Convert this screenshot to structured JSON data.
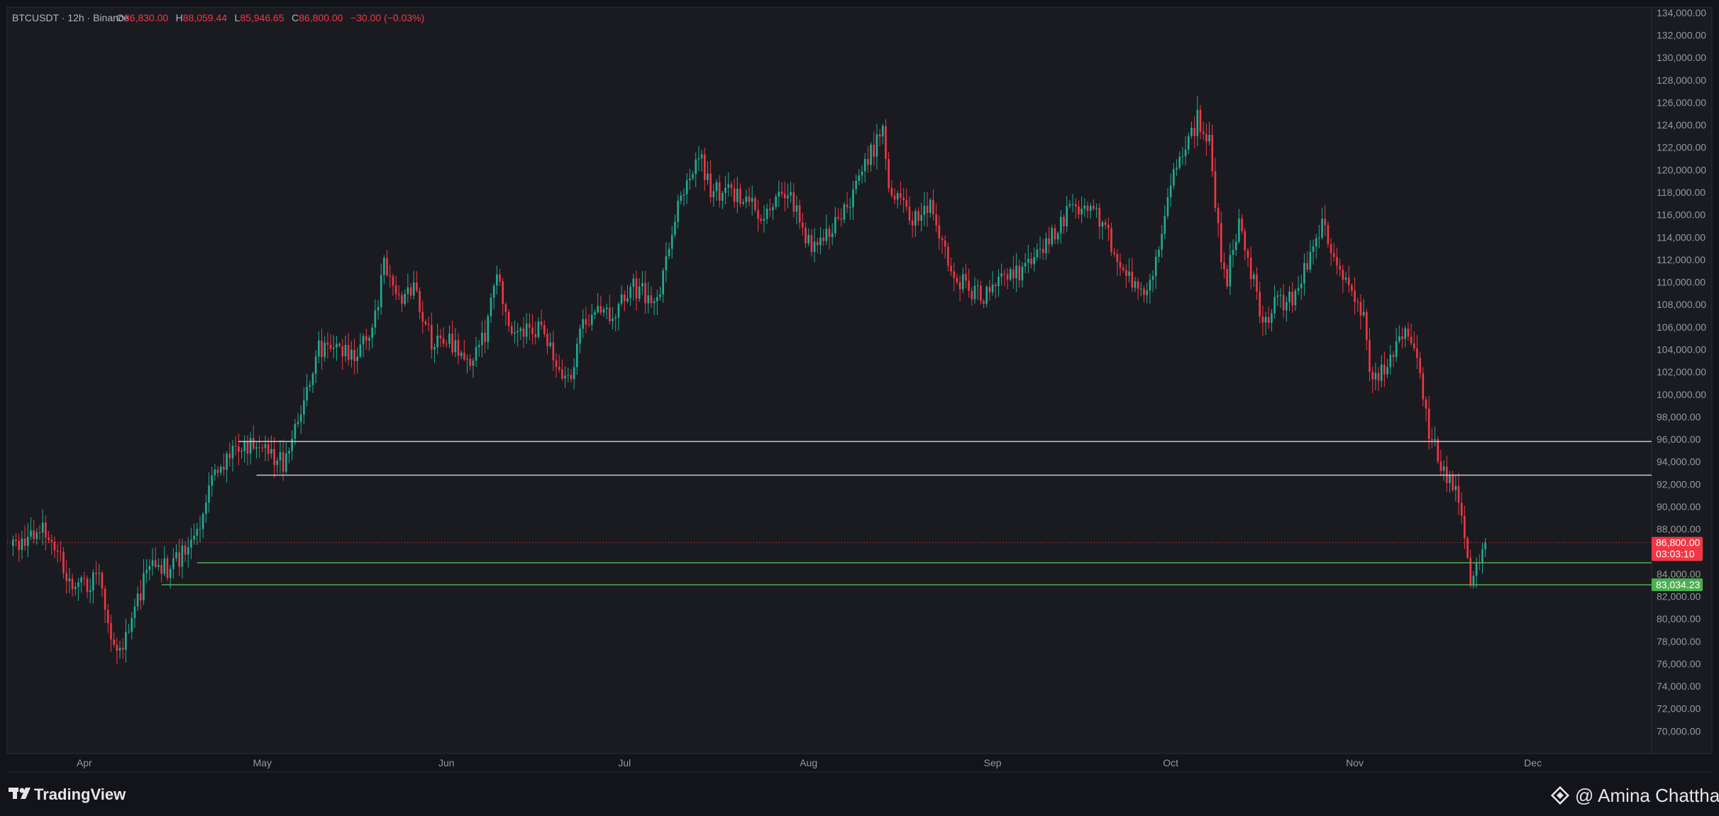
{
  "header": {
    "symbol": "BTCUSDT · 12h · Binance",
    "open_key": "O",
    "open": "86,830.00",
    "high_key": "H",
    "high": "88,059.44",
    "low_key": "L",
    "low": "85,946.65",
    "close_key": "C",
    "close": "86,800.00",
    "change": "−30.00 (−0.03%)"
  },
  "footer": {
    "brand": "TradingView",
    "watermark": "@ Amina Chattha"
  },
  "colors": {
    "background": "#131419",
    "chart_bg": "#1a1b20",
    "up": "#22ab94",
    "down": "#f23645",
    "white_line": "#c8cacf",
    "green_line": "#4caf50",
    "price_line": "#f23645"
  },
  "chart_data": {
    "type": "candlestick",
    "title": "",
    "xlabel": "",
    "ylabel": "",
    "ylim": [
      68000,
      134500
    ],
    "y_ticks": [
      "134,000.00",
      "132,000.00",
      "130,000.00",
      "128,000.00",
      "126,000.00",
      "124,000.00",
      "122,000.00",
      "120,000.00",
      "118,000.00",
      "116,000.00",
      "114,000.00",
      "112,000.00",
      "110,000.00",
      "108,000.00",
      "106,000.00",
      "104,000.00",
      "102,000.00",
      "100,000.00",
      "98,000.00",
      "96,000.00",
      "94,000.00",
      "92,000.00",
      "90,000.00",
      "88,000.00",
      "86,000.00",
      "84,000.00",
      "82,000.00",
      "80,000.00",
      "78,000.00",
      "76,000.00",
      "74,000.00",
      "72,000.00",
      "70,000.00"
    ],
    "x_ticks": [
      {
        "label": "Apr",
        "date": "2025-04-01"
      },
      {
        "label": "May",
        "date": "2025-05-01"
      },
      {
        "label": "Jun",
        "date": "2025-06-01"
      },
      {
        "label": "Jul",
        "date": "2025-07-01"
      },
      {
        "label": "Aug",
        "date": "2025-08-01"
      },
      {
        "label": "Sep",
        "date": "2025-09-01"
      },
      {
        "label": "Oct",
        "date": "2025-10-01"
      },
      {
        "label": "Nov",
        "date": "2025-11-01"
      },
      {
        "label": "Dec",
        "date": "2025-12-01"
      }
    ],
    "price_path": [
      [
        "2025-03-20",
        86500
      ],
      [
        "2025-03-26",
        88000
      ],
      [
        "2025-03-31",
        82500
      ],
      [
        "2025-04-04",
        84000
      ],
      [
        "2025-04-07",
        76500
      ],
      [
        "2025-04-09",
        78500
      ],
      [
        "2025-04-12",
        84500
      ],
      [
        "2025-04-16",
        84500
      ],
      [
        "2025-04-21",
        87500
      ],
      [
        "2025-04-23",
        93500
      ],
      [
        "2025-04-28",
        95000
      ],
      [
        "2025-05-01",
        95500
      ],
      [
        "2025-05-05",
        94000
      ],
      [
        "2025-05-08",
        99000
      ],
      [
        "2025-05-11",
        104000
      ],
      [
        "2025-05-14",
        104500
      ],
      [
        "2025-05-17",
        103500
      ],
      [
        "2025-05-20",
        105500
      ],
      [
        "2025-05-22",
        111500
      ],
      [
        "2025-05-25",
        108500
      ],
      [
        "2025-05-27",
        110000
      ],
      [
        "2025-05-30",
        104500
      ],
      [
        "2025-06-02",
        105000
      ],
      [
        "2025-06-05",
        102500
      ],
      [
        "2025-06-08",
        105500
      ],
      [
        "2025-06-10",
        110000
      ],
      [
        "2025-06-13",
        105000
      ],
      [
        "2025-06-17",
        106000
      ],
      [
        "2025-06-22",
        101000
      ],
      [
        "2025-06-25",
        107000
      ],
      [
        "2025-06-30",
        107500
      ],
      [
        "2025-07-03",
        109500
      ],
      [
        "2025-07-07",
        108500
      ],
      [
        "2025-07-10",
        116000
      ],
      [
        "2025-07-14",
        121500
      ],
      [
        "2025-07-16",
        118000
      ],
      [
        "2025-07-20",
        118000
      ],
      [
        "2025-07-25",
        116000
      ],
      [
        "2025-07-29",
        118500
      ],
      [
        "2025-08-01",
        113500
      ],
      [
        "2025-08-03",
        113000
      ],
      [
        "2025-08-08",
        116500
      ],
      [
        "2025-08-11",
        120500
      ],
      [
        "2025-08-14",
        123500
      ],
      [
        "2025-08-15",
        118000
      ],
      [
        "2025-08-19",
        115500
      ],
      [
        "2025-08-22",
        116500
      ],
      [
        "2025-08-26",
        110500
      ],
      [
        "2025-08-31",
        108500
      ],
      [
        "2025-09-03",
        111000
      ],
      [
        "2025-09-06",
        110500
      ],
      [
        "2025-09-10",
        113000
      ],
      [
        "2025-09-14",
        116000
      ],
      [
        "2025-09-18",
        117000
      ],
      [
        "2025-09-22",
        113000
      ],
      [
        "2025-09-25",
        109500
      ],
      [
        "2025-09-28",
        109500
      ],
      [
        "2025-09-30",
        114000
      ],
      [
        "2025-10-02",
        119500
      ],
      [
        "2025-10-06",
        124500
      ],
      [
        "2025-10-08",
        122500
      ],
      [
        "2025-10-10",
        112500
      ],
      [
        "2025-10-11",
        110500
      ],
      [
        "2025-10-13",
        115500
      ],
      [
        "2025-10-17",
        106500
      ],
      [
        "2025-10-19",
        108000
      ],
      [
        "2025-10-22",
        108500
      ],
      [
        "2025-10-27",
        115000
      ],
      [
        "2025-10-29",
        112500
      ],
      [
        "2025-10-31",
        110000
      ],
      [
        "2025-11-03",
        106500
      ],
      [
        "2025-11-04",
        101500
      ],
      [
        "2025-11-07",
        102000
      ],
      [
        "2025-11-10",
        106000
      ],
      [
        "2025-11-12",
        103000
      ],
      [
        "2025-11-14",
        96500
      ],
      [
        "2025-11-17",
        92500
      ],
      [
        "2025-11-19",
        90500
      ],
      [
        "2025-11-20",
        86500
      ],
      [
        "2025-11-21",
        83000
      ],
      [
        "2025-11-22",
        84500
      ],
      [
        "2025-11-23",
        86800
      ]
    ],
    "candle_interval": "12h",
    "horizontal_lines": [
      {
        "kind": "zone",
        "value": 95800,
        "color": "#c8cacf",
        "from": "2025-04-27"
      },
      {
        "kind": "zone",
        "value": 92800,
        "color": "#c8cacf",
        "from": "2025-04-30"
      },
      {
        "kind": "zone",
        "value": 85000,
        "color": "#4caf50",
        "from": "2025-04-20"
      },
      {
        "kind": "zone",
        "value": 83034.23,
        "color": "#4caf50",
        "from": "2025-04-14"
      }
    ],
    "last_price": {
      "value": 86800,
      "label": "86,800.00",
      "countdown": "03:03:10",
      "color": "#f23645"
    },
    "support_label": {
      "value": 83034.23,
      "label": "83,034.23",
      "color": "#4caf50"
    },
    "grid": false,
    "legend": "none"
  }
}
